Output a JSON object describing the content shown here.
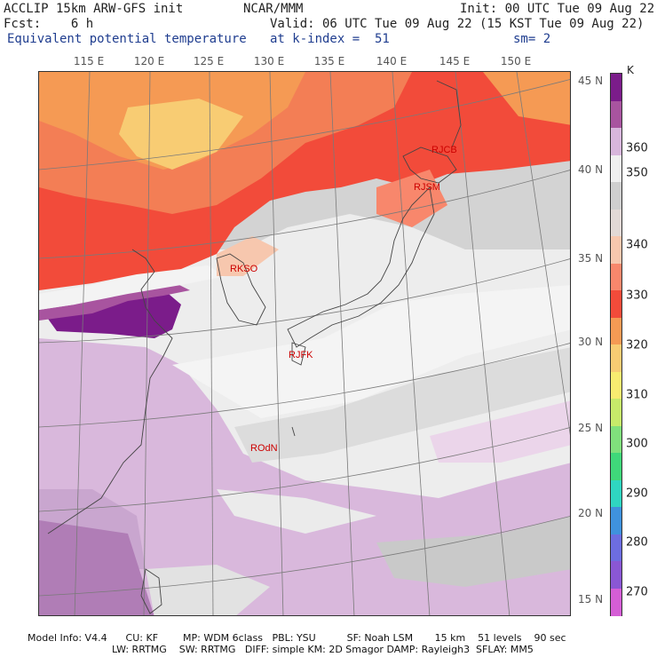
{
  "header": {
    "left_line1": "ACCLIP 15km ARW-GFS init",
    "left_line2": "Fcst:    6 h",
    "left_line3": "Equivalent potential temperature",
    "center_line1": "NCAR/MMM",
    "center_line2": "Valid: 06 UTC Tue 09 Aug 22 (15 KST Tue 09 Aug 22)",
    "center_line3": "at k-index =  51",
    "right_line1": "Init: 00 UTC Tue 09 Aug 22",
    "right_line3": "sm= 2"
  },
  "longitude_labels": [
    "115 E",
    "120 E",
    "125 E",
    "130 E",
    "135 E",
    "140 E",
    "145 E",
    "150 E"
  ],
  "latitude_labels": [
    "45 N",
    "40 N",
    "35 N",
    "30 N",
    "25 N",
    "20 N",
    "15 N"
  ],
  "stations": [
    "RJCB",
    "RJSM",
    "RKSO",
    "RJFK",
    "ROdN"
  ],
  "colorbar": {
    "unit": "K",
    "labels": [
      "360",
      "350",
      "340",
      "330",
      "320",
      "310",
      "300",
      "290",
      "280",
      "270"
    ],
    "colors": [
      "#7b1c8a",
      "#a8549f",
      "#d8b6dc",
      "#f0f0f0",
      "#cfcfcf",
      "#e2d9d6",
      "#f7c7ae",
      "#f8876c",
      "#f24b3a",
      "#f59a54",
      "#f8cc73",
      "#f8ec70",
      "#c7ea6a",
      "#80e07c",
      "#3fd87a",
      "#2fd6c1",
      "#3f92dd",
      "#6d6de0",
      "#8a57d4",
      "#d55ed6"
    ]
  },
  "footer": {
    "line1": "Model Info: V4.4      CU: KF        MP: WDM 6class   PBL: YSU          SF: Noah LSM       15 km    51 levels    90 sec",
    "line2": "LW: RRTMG    SW: RRTMG   DIFF: simple KM: 2D Smagor DAMP: Rayleigh3  SFLAY: MM5"
  }
}
